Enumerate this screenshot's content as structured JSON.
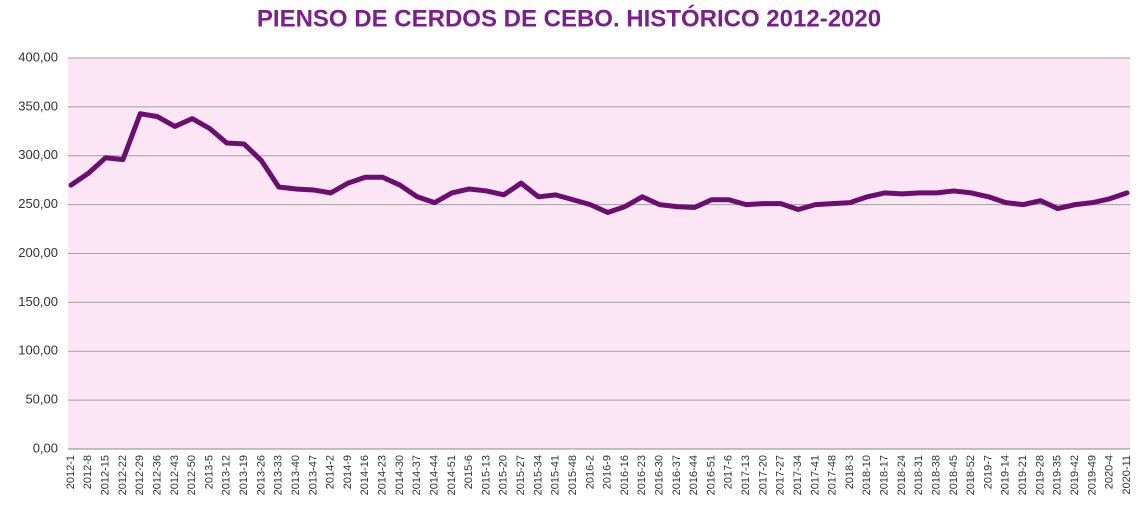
{
  "chart_data": {
    "type": "line",
    "title": "PIENSO DE CERDOS DE CEBO. HISTÓRICO 2012-2020",
    "categories": [
      "2012-1",
      "2012-8",
      "2012-15",
      "2012-22",
      "2012-29",
      "2012-36",
      "2012-43",
      "2012-50",
      "2013-5",
      "2013-12",
      "2013-19",
      "2013-26",
      "2013-33",
      "2013-40",
      "2013-47",
      "2014-2",
      "2014-9",
      "2014-16",
      "2014-23",
      "2014-30",
      "2014-37",
      "2014-44",
      "2014-51",
      "2015-6",
      "2015-13",
      "2015-20",
      "2015-27",
      "2015-34",
      "2015-41",
      "2015-48",
      "2016-2",
      "2016-9",
      "2016-16",
      "2016-23",
      "2016-30",
      "2016-37",
      "2016-44",
      "2016-51",
      "2017-6",
      "2017-13",
      "2017-20",
      "2017-27",
      "2017-34",
      "2017-41",
      "2017-48",
      "2018-3",
      "2018-10",
      "2018-17",
      "2018-24",
      "2018-31",
      "2018-38",
      "2018-45",
      "2018-52",
      "2019-7",
      "2019-14",
      "2019-21",
      "2019-28",
      "2019-35",
      "2019-42",
      "2019-49",
      "2020-4",
      "2020-11"
    ],
    "values": [
      270,
      282,
      298,
      296,
      343,
      340,
      330,
      338,
      328,
      313,
      312,
      295,
      268,
      266,
      265,
      262,
      272,
      278,
      278,
      270,
      258,
      252,
      262,
      266,
      264,
      260,
      272,
      258,
      260,
      255,
      250,
      242,
      248,
      258,
      250,
      248,
      247,
      255,
      255,
      250,
      251,
      251,
      245,
      250,
      251,
      252,
      258,
      262,
      261,
      262,
      262,
      264,
      262,
      258,
      252,
      250,
      254,
      246,
      250,
      252,
      256,
      262
    ],
    "color": "#6a0f6e",
    "ylim": [
      0,
      400
    ],
    "yticks": [
      {
        "value": 0,
        "label": "0,00"
      },
      {
        "value": 50,
        "label": "50,00"
      },
      {
        "value": 100,
        "label": "100,00"
      },
      {
        "value": 150,
        "label": "150,00"
      },
      {
        "value": 200,
        "label": "200,00"
      },
      {
        "value": 250,
        "label": "250,00"
      },
      {
        "value": 300,
        "label": "300,00"
      },
      {
        "value": 350,
        "label": "350,00"
      },
      {
        "value": 400,
        "label": "400,00"
      }
    ],
    "grid": true,
    "plot_background": "#fce6f6"
  }
}
